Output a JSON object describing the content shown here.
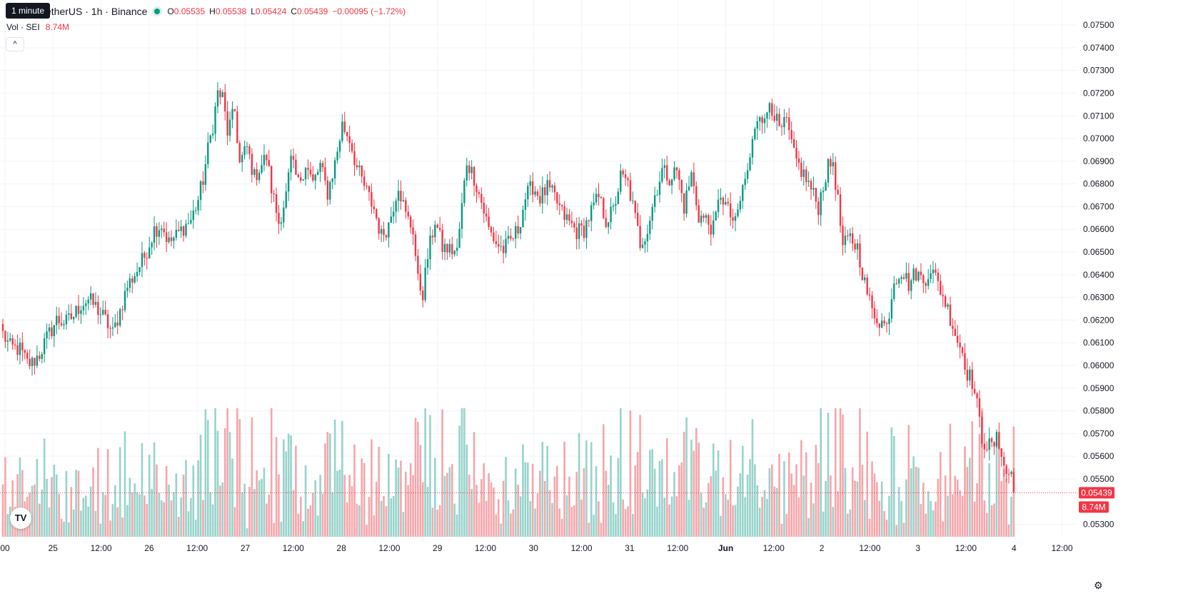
{
  "header": {
    "tooltip": "1 minute",
    "symbol": "etherUS · 1h · Binance",
    "o_label": "O",
    "o": "0.05535",
    "h_label": "H",
    "h": "0.05538",
    "l_label": "L",
    "l": "0.05424",
    "c_label": "C",
    "c": "0.05439",
    "change": "−0.00095 (−1.72%)"
  },
  "volume": {
    "label": "Vol · SEI",
    "value": "8.74M"
  },
  "collapse_label": "^",
  "logo_text": "TV",
  "settings_icon": "gear-icon",
  "colors": {
    "up": "#089981",
    "down": "#f23645",
    "vol_up": "#97d3cb",
    "vol_down": "#f5a6ab",
    "grid": "#f0f3fa",
    "axis_text": "#131722"
  },
  "chart_data": {
    "type": "candlestick",
    "interval": "1h",
    "y_axis_labels": [
      "0.07500",
      "0.07400",
      "0.07300",
      "0.07200",
      "0.07100",
      "0.07000",
      "0.06900",
      "0.06800",
      "0.06700",
      "0.06600",
      "0.06500",
      "0.06400",
      "0.06300",
      "0.06200",
      "0.06100",
      "0.06000",
      "0.05900",
      "0.05800",
      "0.05700",
      "0.05600",
      "0.05500",
      "0.05300"
    ],
    "ylim": [
      0.0522,
      0.0756
    ],
    "x_axis_labels": [
      "00",
      "25",
      "12:00",
      "26",
      "12:00",
      "27",
      "12:00",
      "28",
      "12:00",
      "29",
      "12:00",
      "30",
      "12:00",
      "31",
      "12:00",
      "Jun",
      "12:00",
      "2",
      "12:00",
      "3",
      "12:00",
      "4",
      "12:00"
    ],
    "current_price": "0.05439",
    "last_volume": "8.74M",
    "price_path": [
      [
        0,
        0.0614
      ],
      [
        3,
        0.0608
      ],
      [
        7,
        0.0607
      ],
      [
        10,
        0.0601
      ],
      [
        12,
        0.0601
      ],
      [
        15,
        0.0605
      ],
      [
        18,
        0.0612
      ],
      [
        22,
        0.062
      ],
      [
        26,
        0.0619
      ],
      [
        29,
        0.0622
      ],
      [
        32,
        0.0627
      ],
      [
        35,
        0.0629
      ],
      [
        38,
        0.0626
      ],
      [
        42,
        0.062
      ],
      [
        45,
        0.0614
      ],
      [
        48,
        0.0624
      ],
      [
        51,
        0.0635
      ],
      [
        55,
        0.0642
      ],
      [
        58,
        0.0648
      ],
      [
        62,
        0.066
      ],
      [
        65,
        0.0662
      ],
      [
        68,
        0.0654
      ],
      [
        71,
        0.0657
      ],
      [
        74,
        0.0661
      ],
      [
        77,
        0.0664
      ],
      [
        80,
        0.0673
      ],
      [
        82,
        0.0682
      ],
      [
        84,
        0.0695
      ],
      [
        86,
        0.0706
      ],
      [
        88,
        0.072
      ],
      [
        90,
        0.0718
      ],
      [
        92,
        0.0703
      ],
      [
        95,
        0.0712
      ],
      [
        97,
        0.0689
      ],
      [
        100,
        0.0696
      ],
      [
        103,
        0.0683
      ],
      [
        105,
        0.0687
      ],
      [
        108,
        0.0692
      ],
      [
        110,
        0.0678
      ],
      [
        113,
        0.0663
      ],
      [
        116,
        0.0675
      ],
      [
        118,
        0.069
      ],
      [
        121,
        0.068
      ],
      [
        124,
        0.0689
      ],
      [
        127,
        0.068
      ],
      [
        130,
        0.0688
      ],
      [
        133,
        0.0676
      ],
      [
        136,
        0.0689
      ],
      [
        139,
        0.0706
      ],
      [
        142,
        0.07
      ],
      [
        145,
        0.0687
      ],
      [
        148,
        0.0679
      ],
      [
        152,
        0.0669
      ],
      [
        155,
        0.0657
      ],
      [
        158,
        0.0662
      ],
      [
        162,
        0.068
      ],
      [
        165,
        0.0666
      ],
      [
        168,
        0.066
      ],
      [
        170,
        0.0637
      ],
      [
        172,
        0.0632
      ],
      [
        174,
        0.0648
      ],
      [
        177,
        0.0664
      ],
      [
        180,
        0.0652
      ],
      [
        183,
        0.0651
      ],
      [
        186,
        0.065
      ],
      [
        190,
        0.069
      ],
      [
        193,
        0.0683
      ],
      [
        196,
        0.0672
      ],
      [
        199,
        0.066
      ],
      [
        202,
        0.0654
      ],
      [
        205,
        0.0651
      ],
      [
        208,
        0.0655
      ],
      [
        211,
        0.066
      ],
      [
        214,
        0.0674
      ],
      [
        217,
        0.0679
      ],
      [
        220,
        0.0674
      ],
      [
        223,
        0.0678
      ],
      [
        226,
        0.0674
      ],
      [
        229,
        0.0667
      ],
      [
        232,
        0.0663
      ],
      [
        235,
        0.0659
      ],
      [
        238,
        0.066
      ],
      [
        241,
        0.0668
      ],
      [
        244,
        0.0674
      ],
      [
        247,
        0.0664
      ],
      [
        250,
        0.0668
      ],
      [
        253,
        0.0683
      ],
      [
        256,
        0.068
      ],
      [
        258,
        0.067
      ],
      [
        261,
        0.0654
      ],
      [
        264,
        0.066
      ],
      [
        267,
        0.0675
      ],
      [
        270,
        0.0686
      ],
      [
        273,
        0.0683
      ],
      [
        276,
        0.0686
      ],
      [
        279,
        0.067
      ],
      [
        282,
        0.0684
      ],
      [
        285,
        0.0666
      ],
      [
        288,
        0.0664
      ],
      [
        291,
        0.066
      ],
      [
        294,
        0.0676
      ],
      [
        297,
        0.0668
      ],
      [
        300,
        0.0662
      ],
      [
        303,
        0.0678
      ],
      [
        306,
        0.069
      ],
      [
        308,
        0.0706
      ],
      [
        310,
        0.0713
      ],
      [
        312,
        0.0706
      ],
      [
        314,
        0.0717
      ],
      [
        316,
        0.0711
      ],
      [
        318,
        0.0703
      ],
      [
        321,
        0.0707
      ],
      [
        324,
        0.0692
      ],
      [
        327,
        0.0686
      ],
      [
        330,
        0.068
      ],
      [
        334,
        0.067
      ],
      [
        336,
        0.068
      ],
      [
        338,
        0.0687
      ],
      [
        340,
        0.069
      ],
      [
        342,
        0.0672
      ],
      [
        344,
        0.0652
      ],
      [
        347,
        0.0656
      ],
      [
        350,
        0.0652
      ],
      [
        353,
        0.0636
      ],
      [
        356,
        0.0624
      ],
      [
        359,
        0.062
      ],
      [
        362,
        0.0617
      ],
      [
        365,
        0.0638
      ],
      [
        368,
        0.0642
      ],
      [
        371,
        0.0636
      ],
      [
        374,
        0.0641
      ],
      [
        377,
        0.0637
      ],
      [
        380,
        0.0643
      ],
      [
        383,
        0.0636
      ],
      [
        386,
        0.0628
      ],
      [
        389,
        0.0618
      ],
      [
        391,
        0.0611
      ],
      [
        393,
        0.0606
      ],
      [
        395,
        0.0597
      ],
      [
        397,
        0.0593
      ],
      [
        399,
        0.0582
      ],
      [
        401,
        0.0568
      ],
      [
        403,
        0.0565
      ],
      [
        405,
        0.0564
      ],
      [
        407,
        0.0567
      ],
      [
        409,
        0.0563
      ],
      [
        411,
        0.0551
      ],
      [
        413,
        0.05535
      ],
      [
        414,
        0.05439
      ]
    ],
    "volume_scale_max": 5.0
  }
}
